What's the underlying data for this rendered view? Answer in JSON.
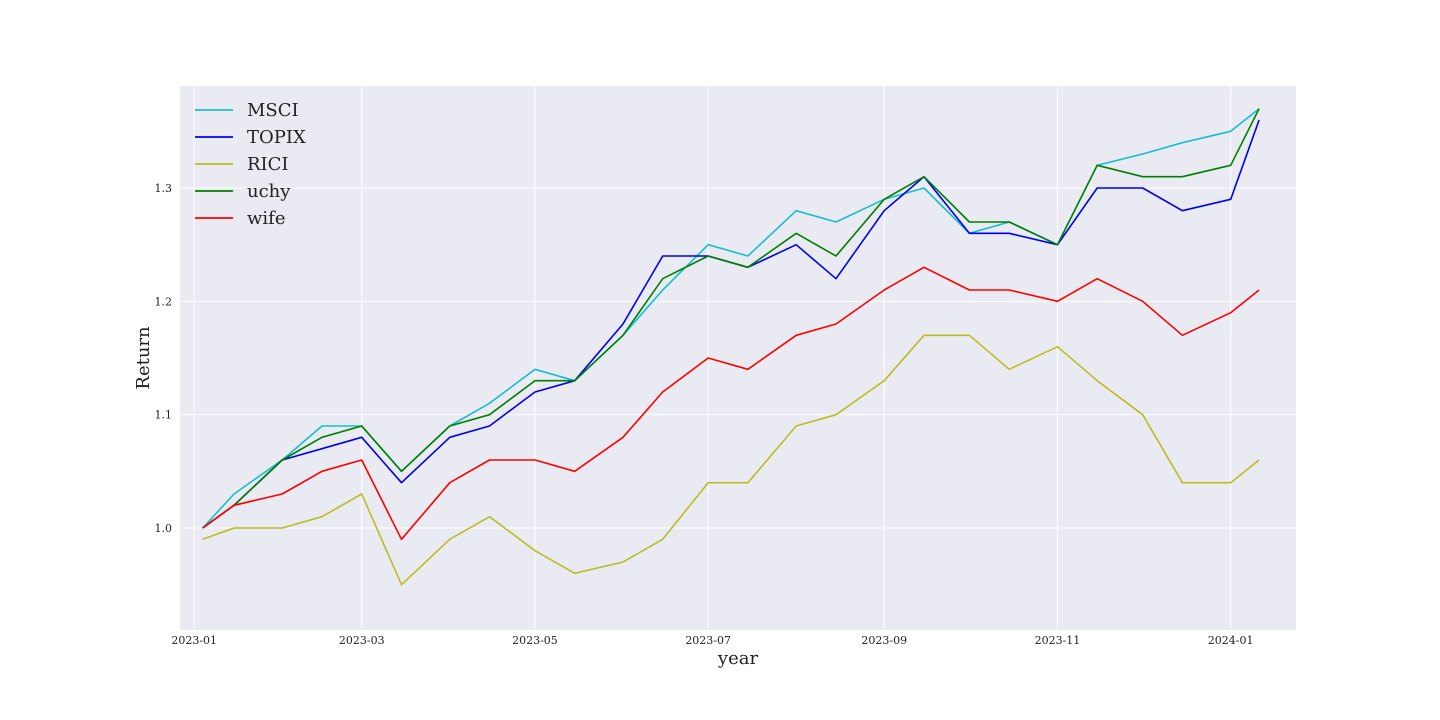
{
  "chart_data": {
    "type": "line",
    "title": "",
    "xlabel": "year",
    "ylabel": "Return",
    "x_ticks": [
      "2023-01",
      "2023-03",
      "2023-05",
      "2023-07",
      "2023-09",
      "2023-11",
      "2024-01"
    ],
    "y_ticks": [
      "1.0",
      "1.1",
      "1.2",
      "1.3"
    ],
    "x_range": [
      "2022-12-27",
      "2024-01-24"
    ],
    "ylim": [
      0.91,
      1.39
    ],
    "grid": true,
    "legend_position": "top-left",
    "series": [
      {
        "name": "MSCI",
        "color": "#17becf",
        "points": [
          [
            "2023-01-04",
            1.0
          ],
          [
            "2023-01-15",
            1.03
          ],
          [
            "2023-02-01",
            1.06
          ],
          [
            "2023-02-15",
            1.09
          ],
          [
            "2023-03-01",
            1.09
          ],
          [
            "2023-03-15",
            1.05
          ],
          [
            "2023-04-01",
            1.09
          ],
          [
            "2023-04-15",
            1.11
          ],
          [
            "2023-05-01",
            1.14
          ],
          [
            "2023-05-15",
            1.13
          ],
          [
            "2023-06-01",
            1.17
          ],
          [
            "2023-06-15",
            1.21
          ],
          [
            "2023-07-01",
            1.25
          ],
          [
            "2023-07-15",
            1.24
          ],
          [
            "2023-08-01",
            1.28
          ],
          [
            "2023-08-15",
            1.27
          ],
          [
            "2023-09-01",
            1.29
          ],
          [
            "2023-09-15",
            1.3
          ],
          [
            "2023-10-01",
            1.26
          ],
          [
            "2023-10-15",
            1.27
          ],
          [
            "2023-11-01",
            1.25
          ],
          [
            "2023-11-15",
            1.32
          ],
          [
            "2023-12-01",
            1.33
          ],
          [
            "2023-12-15",
            1.34
          ],
          [
            "2024-01-01",
            1.35
          ],
          [
            "2024-01-11",
            1.37
          ]
        ]
      },
      {
        "name": "TOPIX",
        "color": "#0000ee",
        "points": [
          [
            "2023-01-04",
            1.0
          ],
          [
            "2023-01-15",
            1.02
          ],
          [
            "2023-02-01",
            1.06
          ],
          [
            "2023-02-15",
            1.07
          ],
          [
            "2023-03-01",
            1.08
          ],
          [
            "2023-03-15",
            1.04
          ],
          [
            "2023-04-01",
            1.08
          ],
          [
            "2023-04-15",
            1.09
          ],
          [
            "2023-05-01",
            1.12
          ],
          [
            "2023-05-15",
            1.13
          ],
          [
            "2023-06-01",
            1.18
          ],
          [
            "2023-06-15",
            1.24
          ],
          [
            "2023-07-01",
            1.24
          ],
          [
            "2023-07-15",
            1.23
          ],
          [
            "2023-08-01",
            1.25
          ],
          [
            "2023-08-15",
            1.22
          ],
          [
            "2023-09-01",
            1.28
          ],
          [
            "2023-09-15",
            1.31
          ],
          [
            "2023-10-01",
            1.26
          ],
          [
            "2023-10-15",
            1.26
          ],
          [
            "2023-11-01",
            1.25
          ],
          [
            "2023-11-15",
            1.3
          ],
          [
            "2023-12-01",
            1.3
          ],
          [
            "2023-12-15",
            1.28
          ],
          [
            "2024-01-01",
            1.29
          ],
          [
            "2024-01-11",
            1.36
          ]
        ]
      },
      {
        "name": "RICI",
        "color": "#bcbd22",
        "points": [
          [
            "2023-01-04",
            0.99
          ],
          [
            "2023-01-15",
            1.0
          ],
          [
            "2023-02-01",
            1.0
          ],
          [
            "2023-02-15",
            1.01
          ],
          [
            "2023-03-01",
            1.03
          ],
          [
            "2023-03-15",
            0.95
          ],
          [
            "2023-04-01",
            0.99
          ],
          [
            "2023-04-15",
            1.01
          ],
          [
            "2023-05-01",
            0.98
          ],
          [
            "2023-05-15",
            0.96
          ],
          [
            "2023-06-01",
            0.97
          ],
          [
            "2023-06-15",
            0.99
          ],
          [
            "2023-07-01",
            1.04
          ],
          [
            "2023-07-15",
            1.04
          ],
          [
            "2023-08-01",
            1.09
          ],
          [
            "2023-08-15",
            1.1
          ],
          [
            "2023-09-01",
            1.13
          ],
          [
            "2023-09-15",
            1.17
          ],
          [
            "2023-10-01",
            1.17
          ],
          [
            "2023-10-15",
            1.14
          ],
          [
            "2023-11-01",
            1.16
          ],
          [
            "2023-11-15",
            1.13
          ],
          [
            "2023-12-01",
            1.1
          ],
          [
            "2023-12-15",
            1.04
          ],
          [
            "2024-01-01",
            1.04
          ],
          [
            "2024-01-11",
            1.06
          ]
        ]
      },
      {
        "name": "uchy",
        "color": "#008000",
        "points": [
          [
            "2023-01-04",
            1.0
          ],
          [
            "2023-01-15",
            1.02
          ],
          [
            "2023-02-01",
            1.06
          ],
          [
            "2023-02-15",
            1.08
          ],
          [
            "2023-03-01",
            1.09
          ],
          [
            "2023-03-15",
            1.05
          ],
          [
            "2023-04-01",
            1.09
          ],
          [
            "2023-04-15",
            1.1
          ],
          [
            "2023-05-01",
            1.13
          ],
          [
            "2023-05-15",
            1.13
          ],
          [
            "2023-06-01",
            1.17
          ],
          [
            "2023-06-15",
            1.22
          ],
          [
            "2023-07-01",
            1.24
          ],
          [
            "2023-07-15",
            1.23
          ],
          [
            "2023-08-01",
            1.26
          ],
          [
            "2023-08-15",
            1.24
          ],
          [
            "2023-09-01",
            1.29
          ],
          [
            "2023-09-15",
            1.31
          ],
          [
            "2023-10-01",
            1.27
          ],
          [
            "2023-10-15",
            1.27
          ],
          [
            "2023-11-01",
            1.25
          ],
          [
            "2023-11-15",
            1.32
          ],
          [
            "2023-12-01",
            1.31
          ],
          [
            "2023-12-15",
            1.31
          ],
          [
            "2024-01-01",
            1.32
          ],
          [
            "2024-01-11",
            1.37
          ]
        ]
      },
      {
        "name": "wife",
        "color": "#ff0000",
        "points": [
          [
            "2023-01-04",
            1.0
          ],
          [
            "2023-01-15",
            1.02
          ],
          [
            "2023-02-01",
            1.03
          ],
          [
            "2023-02-15",
            1.05
          ],
          [
            "2023-03-01",
            1.06
          ],
          [
            "2023-03-15",
            0.99
          ],
          [
            "2023-04-01",
            1.04
          ],
          [
            "2023-04-15",
            1.06
          ],
          [
            "2023-05-01",
            1.06
          ],
          [
            "2023-05-15",
            1.05
          ],
          [
            "2023-06-01",
            1.08
          ],
          [
            "2023-06-15",
            1.12
          ],
          [
            "2023-07-01",
            1.15
          ],
          [
            "2023-07-15",
            1.14
          ],
          [
            "2023-08-01",
            1.17
          ],
          [
            "2023-08-15",
            1.18
          ],
          [
            "2023-09-01",
            1.21
          ],
          [
            "2023-09-15",
            1.23
          ],
          [
            "2023-10-01",
            1.21
          ],
          [
            "2023-10-15",
            1.21
          ],
          [
            "2023-11-01",
            1.2
          ],
          [
            "2023-11-15",
            1.22
          ],
          [
            "2023-12-01",
            1.2
          ],
          [
            "2023-12-15",
            1.17
          ],
          [
            "2024-01-01",
            1.19
          ],
          [
            "2024-01-11",
            1.21
          ]
        ]
      }
    ]
  }
}
